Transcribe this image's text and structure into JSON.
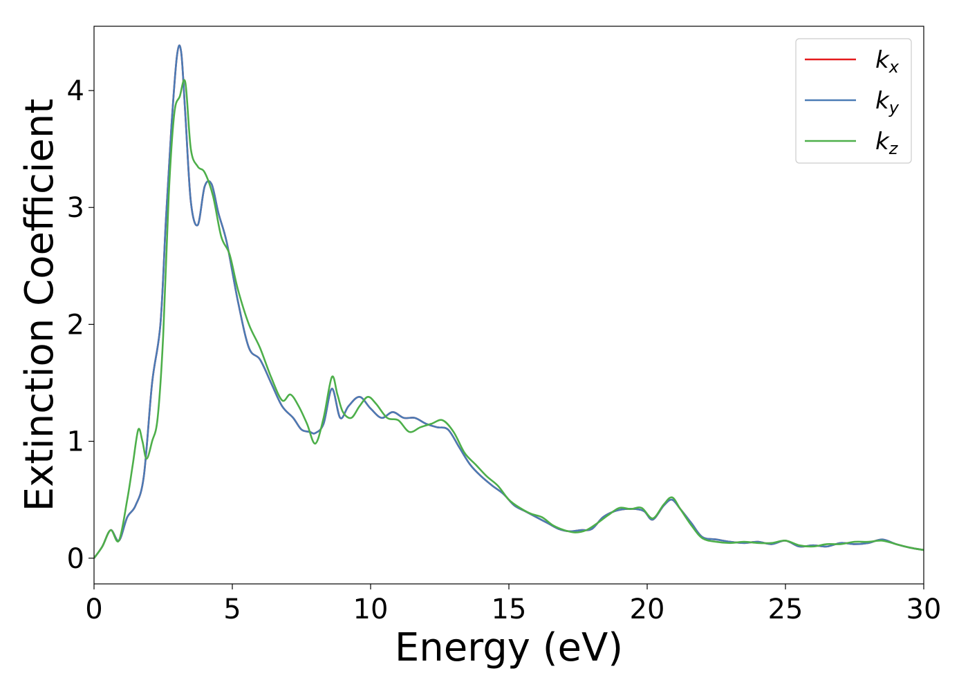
{
  "chart_data": {
    "type": "line",
    "title": "",
    "xlabel": "Energy (eV)",
    "ylabel": "Extinction Coefficient",
    "xlim": [
      0,
      30
    ],
    "ylim": [
      -0.22,
      4.55
    ],
    "xticks": [
      0,
      5,
      10,
      15,
      20,
      25,
      30
    ],
    "yticks": [
      0,
      1,
      2,
      3,
      4
    ],
    "grid": false,
    "legend_position": "top-right",
    "series": [
      {
        "name": "k_x",
        "legend_base": "k",
        "legend_sub": "x",
        "color": "#e41a1c",
        "x": [
          0,
          0.3,
          0.6,
          0.9,
          1.2,
          1.5,
          1.8,
          2.1,
          2.4,
          2.6,
          2.8,
          3.0,
          3.15,
          3.3,
          3.5,
          3.75,
          4.0,
          4.25,
          4.5,
          4.8,
          5.2,
          5.6,
          6.0,
          6.4,
          6.8,
          7.2,
          7.5,
          7.8,
          8.0,
          8.3,
          8.6,
          8.9,
          9.2,
          9.6,
          10.0,
          10.4,
          10.8,
          11.2,
          11.6,
          12.0,
          12.4,
          12.8,
          13.2,
          13.6,
          14.0,
          14.4,
          14.8,
          15.2,
          15.6,
          16.0,
          16.4,
          16.8,
          17.2,
          17.6,
          18.0,
          18.4,
          18.8,
          19.2,
          19.6,
          19.9,
          20.2,
          20.6,
          20.9,
          21.2,
          21.6,
          22.0,
          22.5,
          23.0,
          23.5,
          24.0,
          24.5,
          25.0,
          25.5,
          26.0,
          26.5,
          27.0,
          27.5,
          28.0,
          28.5,
          29.0,
          29.5,
          30.0
        ],
        "y": [
          0.0,
          0.1,
          0.24,
          0.15,
          0.35,
          0.45,
          0.7,
          1.5,
          2.0,
          2.9,
          3.7,
          4.3,
          4.33,
          3.8,
          3.05,
          2.85,
          3.18,
          3.2,
          2.95,
          2.7,
          2.2,
          1.8,
          1.7,
          1.5,
          1.3,
          1.2,
          1.1,
          1.08,
          1.07,
          1.15,
          1.45,
          1.2,
          1.3,
          1.38,
          1.28,
          1.2,
          1.25,
          1.2,
          1.2,
          1.15,
          1.12,
          1.1,
          0.95,
          0.8,
          0.7,
          0.62,
          0.55,
          0.45,
          0.4,
          0.35,
          0.3,
          0.25,
          0.23,
          0.24,
          0.25,
          0.35,
          0.4,
          0.42,
          0.42,
          0.4,
          0.33,
          0.45,
          0.5,
          0.42,
          0.3,
          0.18,
          0.16,
          0.14,
          0.13,
          0.14,
          0.12,
          0.15,
          0.1,
          0.11,
          0.1,
          0.13,
          0.12,
          0.13,
          0.16,
          0.12,
          0.09,
          0.07
        ]
      },
      {
        "name": "k_y",
        "legend_base": "k",
        "legend_sub": "y",
        "color": "#4a7bb5",
        "x": [
          0,
          0.3,
          0.6,
          0.9,
          1.2,
          1.5,
          1.8,
          2.1,
          2.4,
          2.6,
          2.8,
          3.0,
          3.15,
          3.3,
          3.5,
          3.75,
          4.0,
          4.25,
          4.5,
          4.8,
          5.2,
          5.6,
          6.0,
          6.4,
          6.8,
          7.2,
          7.5,
          7.8,
          8.0,
          8.3,
          8.6,
          8.9,
          9.2,
          9.6,
          10.0,
          10.4,
          10.8,
          11.2,
          11.6,
          12.0,
          12.4,
          12.8,
          13.2,
          13.6,
          14.0,
          14.4,
          14.8,
          15.2,
          15.6,
          16.0,
          16.4,
          16.8,
          17.2,
          17.6,
          18.0,
          18.4,
          18.8,
          19.2,
          19.6,
          19.9,
          20.2,
          20.6,
          20.9,
          21.2,
          21.6,
          22.0,
          22.5,
          23.0,
          23.5,
          24.0,
          24.5,
          25.0,
          25.5,
          26.0,
          26.5,
          27.0,
          27.5,
          28.0,
          28.5,
          29.0,
          29.5,
          30.0
        ],
        "y": [
          0.0,
          0.1,
          0.24,
          0.15,
          0.35,
          0.45,
          0.7,
          1.5,
          2.0,
          2.9,
          3.7,
          4.3,
          4.33,
          3.8,
          3.05,
          2.85,
          3.18,
          3.2,
          2.95,
          2.7,
          2.2,
          1.8,
          1.7,
          1.5,
          1.3,
          1.2,
          1.1,
          1.08,
          1.07,
          1.15,
          1.45,
          1.2,
          1.3,
          1.38,
          1.28,
          1.2,
          1.25,
          1.2,
          1.2,
          1.15,
          1.12,
          1.1,
          0.95,
          0.8,
          0.7,
          0.62,
          0.55,
          0.45,
          0.4,
          0.35,
          0.3,
          0.25,
          0.23,
          0.24,
          0.25,
          0.35,
          0.4,
          0.42,
          0.42,
          0.4,
          0.33,
          0.45,
          0.5,
          0.42,
          0.3,
          0.18,
          0.16,
          0.14,
          0.13,
          0.14,
          0.12,
          0.15,
          0.1,
          0.11,
          0.1,
          0.13,
          0.12,
          0.13,
          0.16,
          0.12,
          0.09,
          0.07
        ]
      },
      {
        "name": "k_z",
        "legend_base": "k",
        "legend_sub": "z",
        "color": "#4daf4a",
        "x": [
          0,
          0.3,
          0.6,
          0.9,
          1.2,
          1.4,
          1.6,
          1.75,
          1.9,
          2.1,
          2.3,
          2.5,
          2.7,
          2.9,
          3.1,
          3.3,
          3.5,
          3.75,
          4.0,
          4.3,
          4.6,
          4.9,
          5.2,
          5.6,
          6.0,
          6.4,
          6.8,
          7.1,
          7.4,
          7.7,
          8.0,
          8.3,
          8.6,
          8.8,
          9.0,
          9.3,
          9.6,
          9.9,
          10.2,
          10.6,
          11.0,
          11.4,
          11.8,
          12.2,
          12.6,
          13.0,
          13.4,
          13.8,
          14.2,
          14.6,
          15.0,
          15.4,
          15.8,
          16.2,
          16.6,
          17.0,
          17.4,
          17.8,
          18.2,
          18.6,
          19.0,
          19.4,
          19.8,
          20.2,
          20.6,
          20.9,
          21.2,
          21.6,
          22.0,
          22.5,
          23.0,
          23.5,
          24.0,
          24.5,
          25.0,
          25.5,
          26.0,
          26.5,
          27.0,
          27.5,
          28.0,
          28.5,
          29.0,
          29.5,
          30.0
        ],
        "y": [
          0.0,
          0.1,
          0.24,
          0.15,
          0.5,
          0.8,
          1.1,
          1.0,
          0.85,
          1.0,
          1.2,
          1.9,
          3.1,
          3.8,
          3.95,
          4.07,
          3.5,
          3.35,
          3.3,
          3.1,
          2.75,
          2.6,
          2.3,
          2.0,
          1.8,
          1.55,
          1.35,
          1.4,
          1.3,
          1.15,
          0.98,
          1.2,
          1.55,
          1.4,
          1.25,
          1.2,
          1.3,
          1.38,
          1.32,
          1.2,
          1.18,
          1.08,
          1.12,
          1.15,
          1.18,
          1.08,
          0.9,
          0.8,
          0.7,
          0.62,
          0.5,
          0.43,
          0.38,
          0.35,
          0.28,
          0.24,
          0.22,
          0.24,
          0.3,
          0.37,
          0.43,
          0.42,
          0.43,
          0.34,
          0.46,
          0.52,
          0.42,
          0.28,
          0.17,
          0.14,
          0.13,
          0.14,
          0.13,
          0.13,
          0.15,
          0.11,
          0.1,
          0.12,
          0.12,
          0.14,
          0.14,
          0.15,
          0.12,
          0.09,
          0.07
        ]
      }
    ]
  }
}
